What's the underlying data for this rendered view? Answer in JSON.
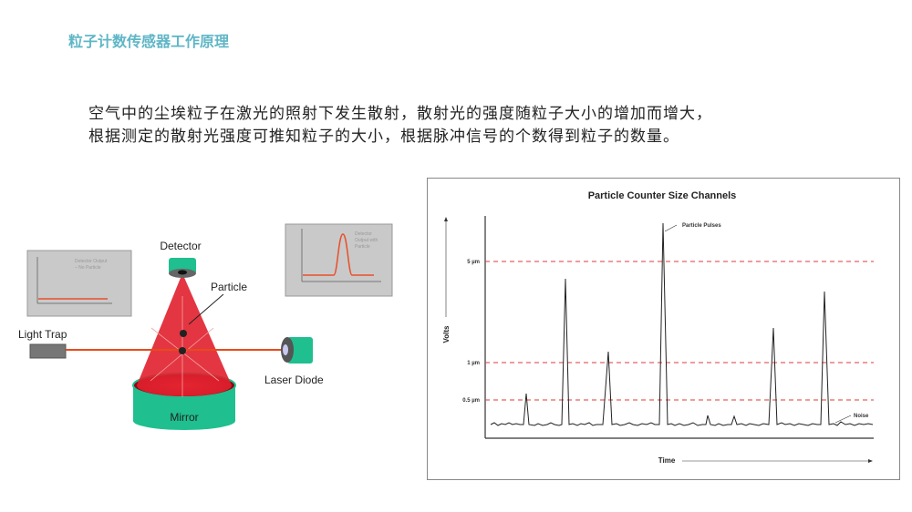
{
  "slide": {
    "title": "粒子计数传感器工作原理",
    "paragraph": [
      "空气中的尘埃粒子在激光的照射下发生散射，散射光的强度随粒子大小的增加而增大，",
      "根据测定的散射光强度可推知粒子的大小，根据脉冲信号的个数得到粒子的数量。"
    ]
  },
  "diagram": {
    "labels": {
      "detector": "Detector",
      "particle": "Particle",
      "light_trap": "Light Trap",
      "laser_diode": "Laser Diode",
      "mirror": "Mirror"
    },
    "inset_no_particle": [
      "Detector Output",
      "– No Particle"
    ],
    "inset_with_particle": [
      "Detector",
      "Output with",
      "Particle"
    ],
    "colors": {
      "cylinder": "#1fbf8f",
      "beam": "#e8232f",
      "laser": "#e84a1a",
      "inset_bg": "#c8c8c8"
    }
  },
  "chart": {
    "title": "Particle Counter Size Channels",
    "ylabel": "Volts",
    "xlabel": "Time",
    "thresholds": [
      "5 µm",
      "1 µm",
      "0.5 µm"
    ],
    "annotations": {
      "pulses": "Particle Pulses",
      "noise": "Noise"
    },
    "threshold_color": "#e03a3a"
  }
}
